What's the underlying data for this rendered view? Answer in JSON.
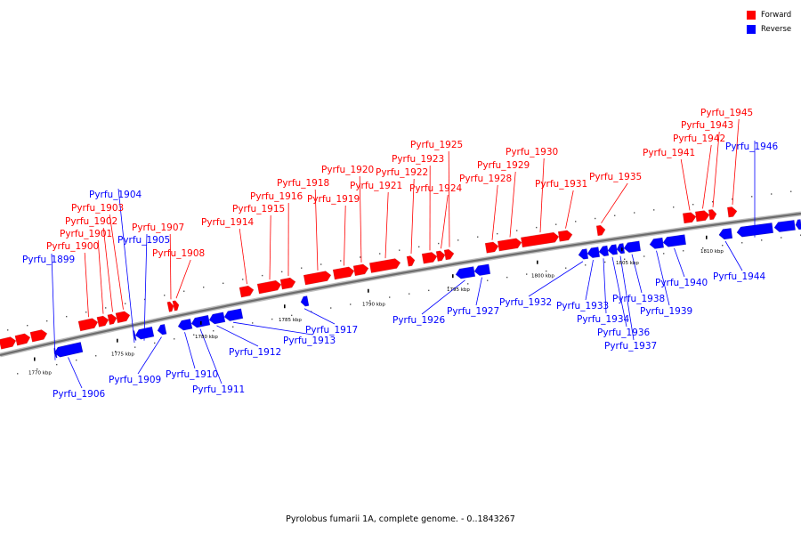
{
  "title": "Pyrolobus fumarii 1A, complete genome. - 0..1843267",
  "colors": {
    "forward": "#ff0000",
    "reverse": "#0000ff"
  },
  "legend": [
    {
      "label": "Forward",
      "strand": "forward"
    },
    {
      "label": "Reverse",
      "strand": "reverse"
    }
  ],
  "axis_ticks": [
    "1770 kbp",
    "1775 kbp",
    "1780 kbp",
    "1785 kbp",
    "1790 kbp",
    "1795 kbp",
    "1800 kbp",
    "1805 kbp",
    "1810 kbp"
  ],
  "genes": [
    {
      "name": "Pyrfu_1899",
      "strand": "reverse"
    },
    {
      "name": "Pyrfu_1900",
      "strand": "forward"
    },
    {
      "name": "Pyrfu_1901",
      "strand": "forward"
    },
    {
      "name": "Pyrfu_1902",
      "strand": "forward"
    },
    {
      "name": "Pyrfu_1903",
      "strand": "forward"
    },
    {
      "name": "Pyrfu_1904",
      "strand": "reverse"
    },
    {
      "name": "Pyrfu_1905",
      "strand": "reverse"
    },
    {
      "name": "Pyrfu_1906",
      "strand": "reverse"
    },
    {
      "name": "Pyrfu_1907",
      "strand": "forward"
    },
    {
      "name": "Pyrfu_1908",
      "strand": "forward"
    },
    {
      "name": "Pyrfu_1909",
      "strand": "reverse"
    },
    {
      "name": "Pyrfu_1910",
      "strand": "reverse"
    },
    {
      "name": "Pyrfu_1911",
      "strand": "reverse"
    },
    {
      "name": "Pyrfu_1912",
      "strand": "reverse"
    },
    {
      "name": "Pyrfu_1913",
      "strand": "reverse"
    },
    {
      "name": "Pyrfu_1914",
      "strand": "forward"
    },
    {
      "name": "Pyrfu_1915",
      "strand": "forward"
    },
    {
      "name": "Pyrfu_1916",
      "strand": "forward"
    },
    {
      "name": "Pyrfu_1917",
      "strand": "reverse"
    },
    {
      "name": "Pyrfu_1918",
      "strand": "forward"
    },
    {
      "name": "Pyrfu_1919",
      "strand": "forward"
    },
    {
      "name": "Pyrfu_1920",
      "strand": "forward"
    },
    {
      "name": "Pyrfu_1921",
      "strand": "forward"
    },
    {
      "name": "Pyrfu_1922",
      "strand": "forward"
    },
    {
      "name": "Pyrfu_1923",
      "strand": "forward"
    },
    {
      "name": "Pyrfu_1924",
      "strand": "forward"
    },
    {
      "name": "Pyrfu_1925",
      "strand": "forward"
    },
    {
      "name": "Pyrfu_1926",
      "strand": "reverse"
    },
    {
      "name": "Pyrfu_1927",
      "strand": "reverse"
    },
    {
      "name": "Pyrfu_1928",
      "strand": "forward"
    },
    {
      "name": "Pyrfu_1929",
      "strand": "forward"
    },
    {
      "name": "Pyrfu_1930",
      "strand": "forward"
    },
    {
      "name": "Pyrfu_1931",
      "strand": "forward"
    },
    {
      "name": "Pyrfu_1932",
      "strand": "reverse"
    },
    {
      "name": "Pyrfu_1933",
      "strand": "reverse"
    },
    {
      "name": "Pyrfu_1934",
      "strand": "reverse"
    },
    {
      "name": "Pyrfu_1935",
      "strand": "forward"
    },
    {
      "name": "Pyrfu_1936",
      "strand": "reverse"
    },
    {
      "name": "Pyrfu_1937",
      "strand": "reverse"
    },
    {
      "name": "Pyrfu_1938",
      "strand": "reverse"
    },
    {
      "name": "Pyrfu_1939",
      "strand": "reverse"
    },
    {
      "name": "Pyrfu_1940",
      "strand": "reverse"
    },
    {
      "name": "Pyrfu_1941",
      "strand": "forward"
    },
    {
      "name": "Pyrfu_1942",
      "strand": "forward"
    },
    {
      "name": "Pyrfu_1943",
      "strand": "forward"
    },
    {
      "name": "Pyrfu_1944",
      "strand": "reverse"
    },
    {
      "name": "Pyrfu_1945",
      "strand": "forward"
    },
    {
      "name": "Pyrfu_1946",
      "strand": "reverse"
    }
  ]
}
